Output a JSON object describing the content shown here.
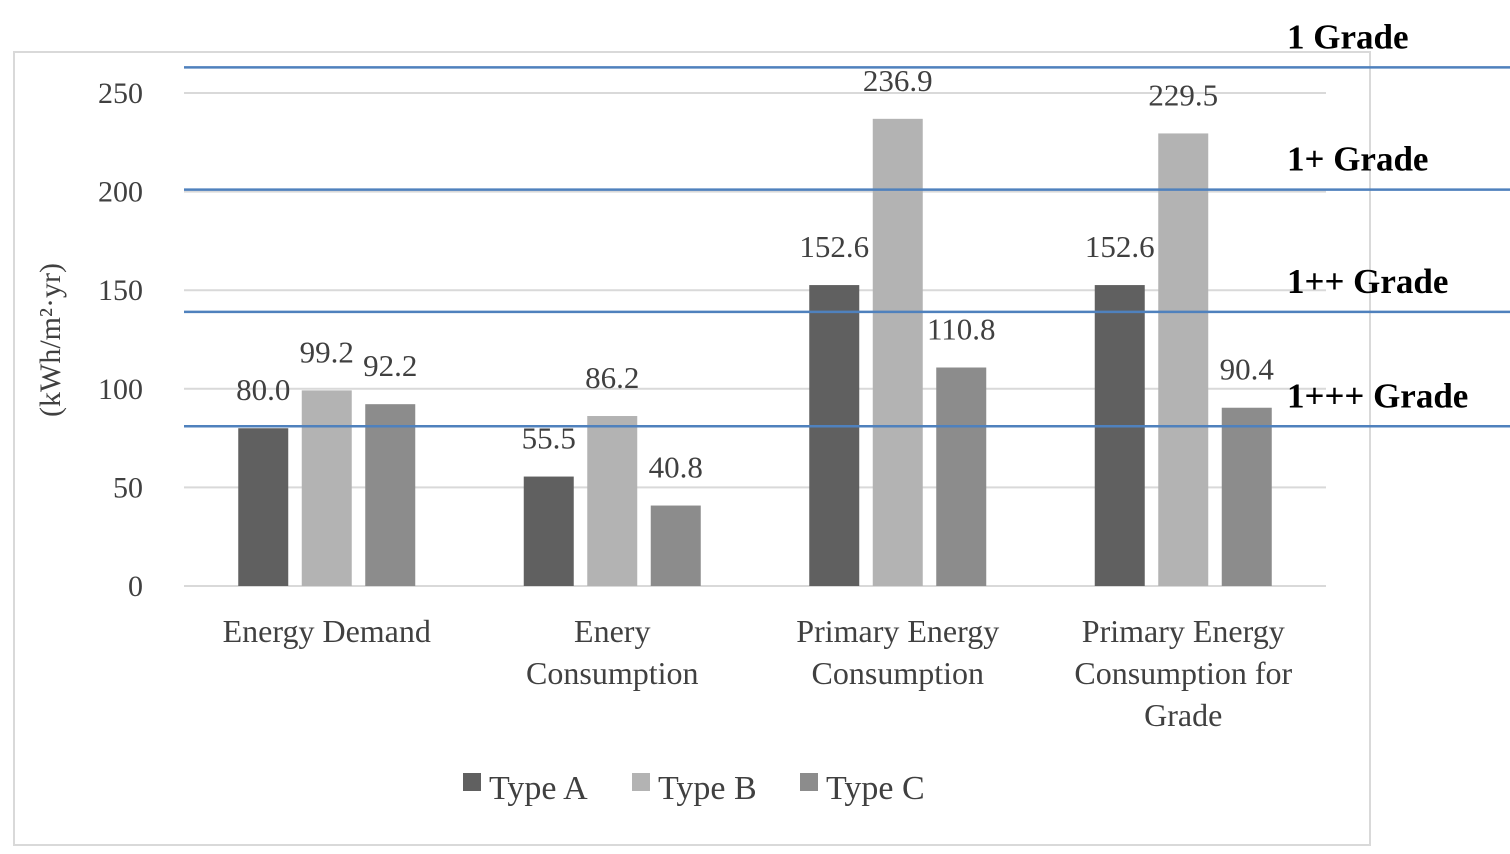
{
  "chart_data": {
    "type": "bar",
    "title": "",
    "xlabel": "",
    "ylabel": "(kWh/m²·yr)",
    "ylim": [
      0,
      250
    ],
    "yticks": [
      0,
      50,
      100,
      150,
      200,
      250
    ],
    "grid": true,
    "legend_position": "bottom",
    "categories": [
      [
        "Energy Demand"
      ],
      [
        "Enery",
        "Consumption"
      ],
      [
        "Primary Energy",
        "Consumption"
      ],
      [
        "Primary Energy",
        "Consumption for",
        "Grade"
      ]
    ],
    "series": [
      {
        "name": "Type A",
        "color": "#606060",
        "values": [
          80.0,
          55.5,
          152.6,
          152.6
        ],
        "labels": [
          "80.0",
          "55.5",
          "152.6",
          "152.6"
        ]
      },
      {
        "name": "Type B",
        "color": "#b3b3b3",
        "values": [
          99.2,
          86.2,
          236.9,
          229.5
        ],
        "labels": [
          "99.2",
          "86.2",
          "236.9",
          "229.5"
        ]
      },
      {
        "name": "Type C",
        "color": "#8c8c8c",
        "values": [
          92.2,
          40.8,
          110.8,
          90.4
        ],
        "labels": [
          "92.2",
          "40.8",
          "110.8",
          "90.4"
        ]
      }
    ],
    "reference_lines": [
      {
        "label": "1 Grade",
        "value": 263,
        "color": "#4f81bd"
      },
      {
        "label": "1+ Grade",
        "value": 201,
        "color": "#4f81bd"
      },
      {
        "label": "1++ Grade",
        "value": 139,
        "color": "#4f81bd"
      },
      {
        "label": "1+++ Grade",
        "value": 81,
        "color": "#4f81bd"
      }
    ],
    "gridline_color": "#d9d9d9",
    "frame_color": "#d9d9d9"
  }
}
